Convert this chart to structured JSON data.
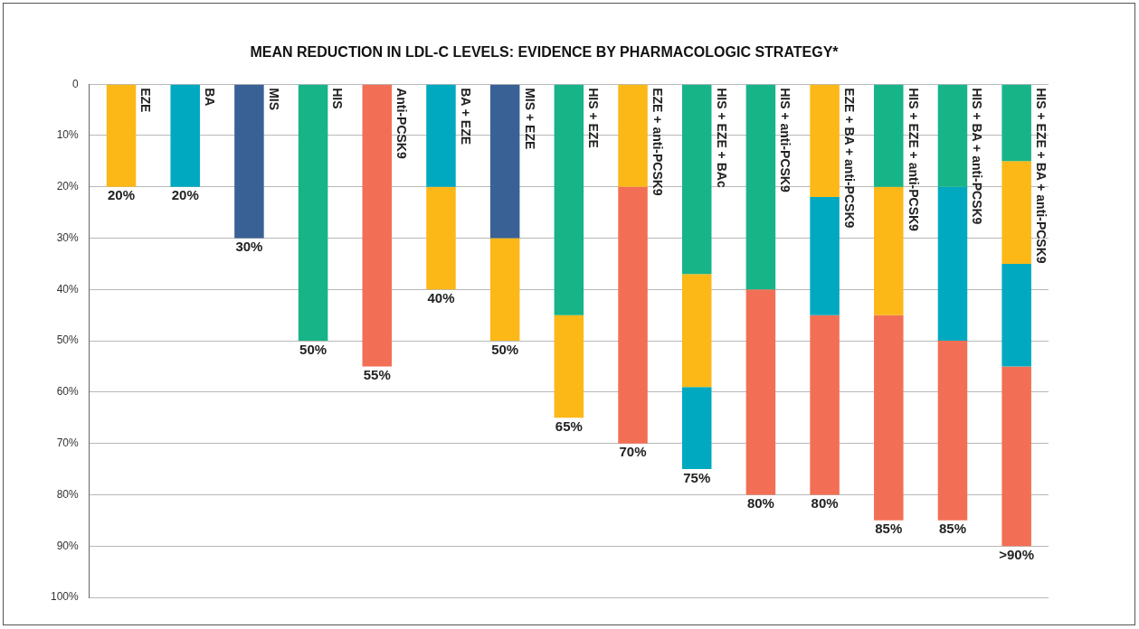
{
  "chart_data": {
    "type": "bar",
    "title": "MEAN REDUCTION IN LDL-C LEVELS: EVIDENCE BY PHARMACOLOGIC STRATEGY*",
    "categories": [
      "EZE",
      "BA",
      "MIS",
      "HIS",
      "Anti-PCSK9",
      "BA + EZE",
      "MIS + EZE",
      "HIS + EZE",
      "EZE + anti-PCSK9",
      "HIS + EZE + BAc",
      "HIS + anti-PCSK9",
      "EZE + BA + anti-PCSK9",
      "HIS + EZE + anti-PCSK9",
      "HIS + BA + anti-PCSK9",
      "HIS + EZE + BA + anti-PCSK9"
    ],
    "stacked": true,
    "series": [
      {
        "values": [
          20,
          20,
          30,
          50,
          55,
          20,
          30,
          45,
          20,
          37,
          40,
          22,
          20,
          20,
          15
        ],
        "colors": [
          "#fbb817",
          "#00a9c0",
          "#3a6195",
          "#17b487",
          "#f26f55",
          "#00a9c0",
          "#3a6195",
          "#17b487",
          "#fbb817",
          "#17b487",
          "#17b487",
          "#fbb817",
          "#17b487",
          "#17b487",
          "#17b487"
        ]
      },
      {
        "values": [
          null,
          null,
          null,
          null,
          null,
          20,
          20,
          20,
          50,
          22,
          40,
          23,
          25,
          30,
          20
        ],
        "colors": [
          null,
          null,
          null,
          null,
          null,
          "#fbb817",
          "#fbb817",
          "#fbb817",
          "#f26f55",
          "#fbb817",
          "#f26f55",
          "#00a9c0",
          "#fbb817",
          "#00a9c0",
          "#fbb817"
        ]
      },
      {
        "values": [
          null,
          null,
          null,
          null,
          null,
          null,
          null,
          null,
          null,
          16,
          null,
          35,
          40,
          35,
          20
        ],
        "colors": [
          null,
          null,
          null,
          null,
          null,
          null,
          null,
          null,
          null,
          "#00a9c0",
          null,
          "#f26f55",
          "#f26f55",
          "#f26f55",
          "#00a9c0"
        ]
      },
      {
        "values": [
          null,
          null,
          null,
          null,
          null,
          null,
          null,
          null,
          null,
          null,
          null,
          null,
          null,
          null,
          35
        ],
        "colors": [
          null,
          null,
          null,
          null,
          null,
          null,
          null,
          null,
          null,
          null,
          null,
          null,
          null,
          null,
          "#f26f55"
        ]
      }
    ],
    "totals": [
      "20%",
      "20%",
      "30%",
      "50%",
      "55%",
      "40%",
      "50%",
      "65%",
      "70%",
      "75%",
      "80%",
      "80%",
      "85%",
      "85%",
      ">90%"
    ],
    "ylim": [
      100,
      0
    ],
    "yticks": [
      0,
      {
        "value": 10,
        "label": "10%"
      },
      {
        "value": 20,
        "label": "20%"
      },
      {
        "value": 30,
        "label": "30%"
      },
      {
        "value": 40,
        "label": "40%"
      },
      {
        "value": 50,
        "label": "50%"
      },
      {
        "value": 60,
        "label": "60%"
      },
      {
        "value": 70,
        "label": "70%"
      },
      {
        "value": 80,
        "label": "80%"
      },
      {
        "value": 90,
        "label": "90%"
      },
      {
        "value": 100,
        "label": "100%"
      }
    ],
    "grid": "y",
    "legend": false
  }
}
